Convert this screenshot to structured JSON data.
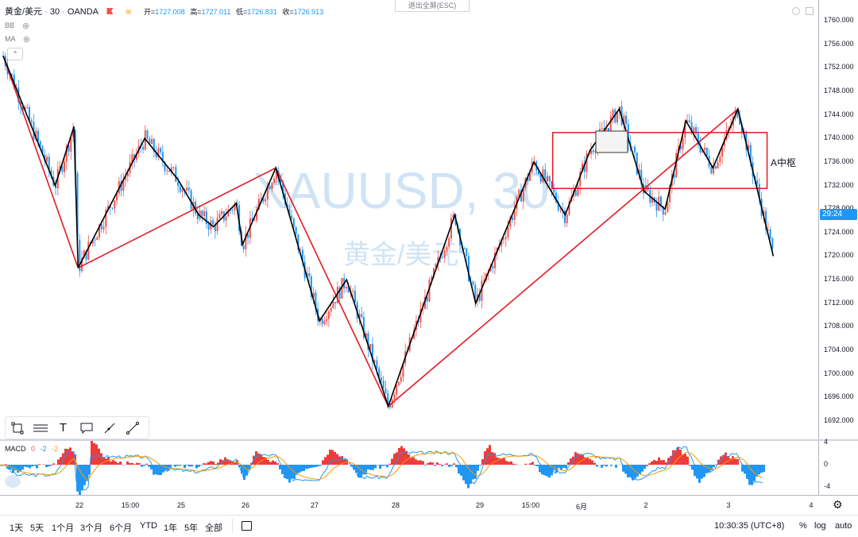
{
  "legend": {
    "symbol": "黄金/美元",
    "interval": "30",
    "source": "OANDA",
    "open_label": "开=",
    "open": "1727.008",
    "high_label": "高=",
    "high": "1727.011",
    "low_label": "低=",
    "low": "1726.831",
    "close_label": "收=",
    "close": "1726.913"
  },
  "indicators": {
    "bb": "BB",
    "ma": "MA"
  },
  "exit_fullscreen": "退出全屏(ESC)",
  "watermark": {
    "symbol": "XAUUSD, 30",
    "name": "黄金/美元"
  },
  "annotation": {
    "zone_label": "A中枢"
  },
  "price_axis": {
    "ticks": [
      "1760.000",
      "1756.000",
      "1752.000",
      "1748.000",
      "1744.000",
      "1740.000",
      "1736.000",
      "1732.000",
      "1728.000",
      "1724.000",
      "1720.000",
      "1716.000",
      "1712.000",
      "1708.000",
      "1704.000",
      "1700.000",
      "1696.000",
      "1692.000"
    ],
    "last_price_label": "29:24"
  },
  "macd": {
    "title": "MACD",
    "v1": "0",
    "v2": "-2",
    "v3": "-2",
    "axis_ticks": [
      "4",
      "0",
      "-4"
    ]
  },
  "time_axis": {
    "ticks": [
      "22",
      "15:00",
      "25",
      "26",
      "27",
      "28",
      "29",
      "15:00",
      "6月",
      "2",
      "3",
      "4"
    ]
  },
  "bottom_bar": {
    "ranges": [
      "1天",
      "5天",
      "1个月",
      "3个月",
      "6个月",
      "YTD",
      "1年",
      "5年",
      "全部"
    ],
    "clock": "10:30:35 (UTC+8)",
    "percent": "%",
    "log": "log",
    "auto": "auto"
  },
  "colors": {
    "up": "#ef5350",
    "down": "#2196f3",
    "zigzag": "#000000",
    "trend_line": "#e31b23",
    "zone_border": "#e31b23",
    "macd_fast": "#2196f3",
    "macd_slow": "#ff9800",
    "last_price_bg": "#2196f3"
  },
  "chart_data": {
    "type": "candlestick",
    "y_range": [
      1690,
      1762
    ],
    "zigzag_black": [
      [
        0,
        1754
      ],
      [
        2.5,
        1732
      ],
      [
        3.4,
        1742
      ],
      [
        3.6,
        1718
      ],
      [
        6.8,
        1740
      ],
      [
        8.4,
        1733
      ],
      [
        9.4,
        1727
      ],
      [
        10.1,
        1725
      ],
      [
        11.2,
        1729
      ],
      [
        11.5,
        1722
      ],
      [
        13.1,
        1735
      ],
      [
        15.2,
        1709
      ],
      [
        16.5,
        1716
      ],
      [
        18.5,
        1694.5
      ],
      [
        21.7,
        1727
      ],
      [
        22.7,
        1712
      ],
      [
        25.5,
        1736
      ],
      [
        27,
        1727
      ],
      [
        28.2,
        1738
      ],
      [
        29.6,
        1745
      ],
      [
        30.8,
        1731
      ],
      [
        31.8,
        1728
      ],
      [
        32.8,
        1743
      ],
      [
        34.1,
        1735
      ],
      [
        35.3,
        1745
      ],
      [
        37,
        1720
      ]
    ],
    "trend_lines": [
      [
        [
          0,
          1754
        ],
        [
          3.6,
          1718
        ]
      ],
      [
        [
          3.6,
          1718
        ],
        [
          13.1,
          1735
        ]
      ],
      [
        [
          13.1,
          1735
        ],
        [
          18.5,
          1694.5
        ]
      ],
      [
        [
          18.5,
          1694.5
        ],
        [
          35.3,
          1745
        ]
      ]
    ],
    "zone": {
      "x1": 26.4,
      "x2": 36.7,
      "y_top": 1741,
      "y_bottom": 1731.5,
      "label": "A中枢"
    },
    "macd_range": [
      -5,
      5
    ]
  }
}
